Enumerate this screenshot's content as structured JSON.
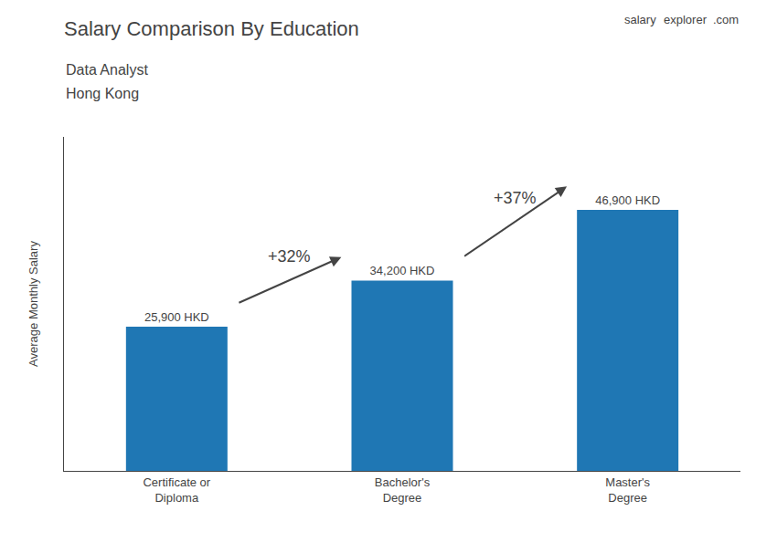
{
  "chart_data": {
    "type": "bar",
    "title": "Salary Comparison By Education",
    "subtitle": [
      "Data Analyst",
      "Hong Kong"
    ],
    "ylabel": "Average Monthly Salary",
    "categories": [
      "Certificate or\nDiploma",
      "Bachelor's\nDegree",
      "Master's\nDegree"
    ],
    "values": [
      25900,
      34200,
      46900
    ],
    "value_labels": [
      "25,900 HKD",
      "34,200 HKD",
      "46,900 HKD"
    ],
    "data_labels": true,
    "annotations": [
      {
        "text": "+32%",
        "from": 0,
        "to": 1
      },
      {
        "text": "+37%",
        "from": 1,
        "to": 2
      },
      {
        "text": "salary"
      },
      {
        "text": "explorer"
      },
      {
        "text": ".com"
      }
    ],
    "ylim": [
      0,
      60000
    ],
    "tick_labels": "x",
    "grid": false
  }
}
